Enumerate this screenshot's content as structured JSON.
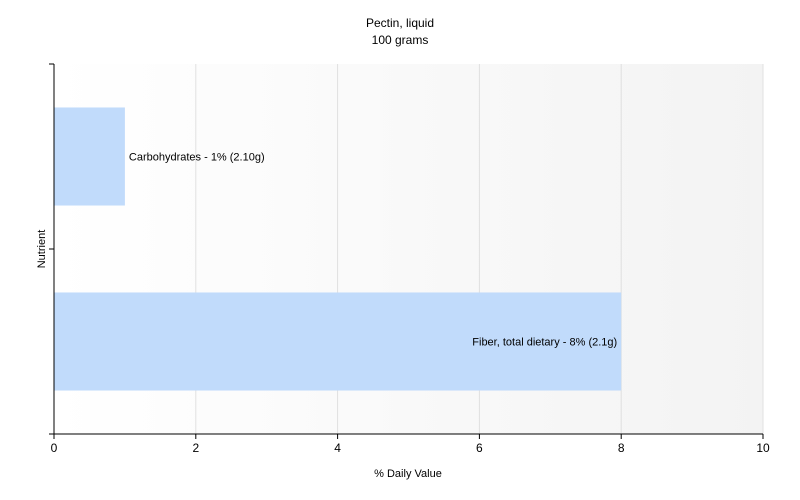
{
  "chart_data": {
    "type": "bar",
    "orientation": "horizontal",
    "title": "Pectin, liquid",
    "subtitle": "100 grams",
    "xlabel": "% Daily Value",
    "ylabel": "Nutrient",
    "xlim": [
      0,
      10
    ],
    "x_ticks": [
      0,
      2,
      4,
      6,
      8,
      10
    ],
    "grid": true,
    "categories": [
      "Carbohydrates",
      "Fiber, total dietary"
    ],
    "values": [
      1,
      8
    ],
    "bar_labels": [
      "Carbohydrates - 1% (2.10g)",
      "Fiber, total dietary - 8% (2.1g)"
    ],
    "colors": {
      "bar": "#c1dbfb",
      "plot_background": "#f8f8f8",
      "grid": "#e0e0e0",
      "axis": "#000000"
    }
  }
}
